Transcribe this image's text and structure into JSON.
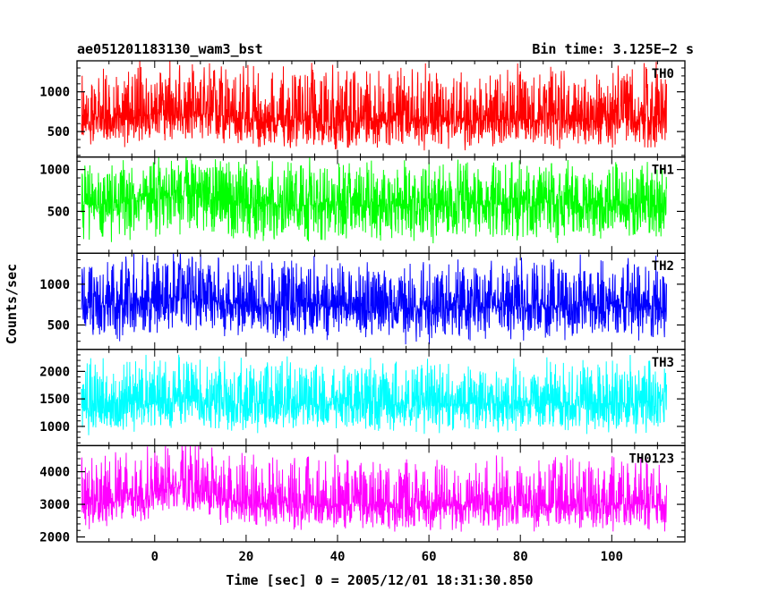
{
  "chart_data": {
    "type": "line",
    "title_left": "ae051201183130_wam3_bst",
    "title_right": "Bin time: 3.125E−2 s",
    "xlabel": "Time [sec] 0 = 2005/12/01 18:31:30.850",
    "ylabel": "Counts/sec",
    "xlim": [
      -17,
      116
    ],
    "xticks": [
      0,
      20,
      40,
      60,
      80,
      100
    ],
    "x_data_range": [
      -16,
      112
    ],
    "bin_time_s": 0.03125,
    "panels": [
      {
        "name": "TH0",
        "color": "#ff0000",
        "ylim": [
          180,
          1390
        ],
        "yticks": [
          500,
          1000
        ],
        "mean": 650,
        "noise_low": 330,
        "noise_high": 1260,
        "envelope": [
          [
            -16,
            650
          ],
          [
            -5,
            680
          ],
          [
            0,
            720
          ],
          [
            5,
            760
          ],
          [
            10,
            730
          ],
          [
            20,
            660
          ],
          [
            40,
            640
          ],
          [
            60,
            640
          ],
          [
            80,
            650
          ],
          [
            100,
            650
          ],
          [
            112,
            650
          ]
        ]
      },
      {
        "name": "TH1",
        "color": "#00ff00",
        "ylim": [
          0,
          1150
        ],
        "yticks": [
          500,
          1000
        ],
        "mean": 580,
        "noise_low": 180,
        "noise_high": 1050,
        "envelope": [
          [
            -16,
            580
          ],
          [
            -5,
            600
          ],
          [
            0,
            640
          ],
          [
            5,
            700
          ],
          [
            10,
            660
          ],
          [
            20,
            590
          ],
          [
            40,
            570
          ],
          [
            60,
            570
          ],
          [
            80,
            580
          ],
          [
            100,
            580
          ],
          [
            112,
            580
          ]
        ]
      },
      {
        "name": "TH2",
        "color": "#0000ff",
        "ylim": [
          200,
          1380
        ],
        "yticks": [
          500,
          1000
        ],
        "mean": 730,
        "noise_low": 360,
        "noise_high": 1250,
        "envelope": [
          [
            -16,
            730
          ],
          [
            -5,
            760
          ],
          [
            0,
            800
          ],
          [
            5,
            840
          ],
          [
            10,
            810
          ],
          [
            20,
            740
          ],
          [
            40,
            720
          ],
          [
            60,
            720
          ],
          [
            80,
            730
          ],
          [
            100,
            730
          ],
          [
            112,
            730
          ]
        ]
      },
      {
        "name": "TH3",
        "color": "#00ffff",
        "ylim": [
          650,
          2400
        ],
        "yticks": [
          1000,
          1500,
          2000
        ],
        "mean": 1420,
        "noise_low": 950,
        "noise_high": 2150,
        "envelope": [
          [
            -16,
            1420
          ],
          [
            -5,
            1440
          ],
          [
            0,
            1460
          ],
          [
            5,
            1480
          ],
          [
            10,
            1450
          ],
          [
            20,
            1420
          ],
          [
            40,
            1410
          ],
          [
            60,
            1410
          ],
          [
            80,
            1420
          ],
          [
            100,
            1420
          ],
          [
            112,
            1420
          ]
        ]
      },
      {
        "name": "TH0123",
        "color": "#ff00ff",
        "ylim": [
          1850,
          4800
        ],
        "yticks": [
          2000,
          3000,
          4000
        ],
        "mean": 3000,
        "noise_low": 2300,
        "noise_high": 4300,
        "envelope": [
          [
            -16,
            3000
          ],
          [
            -5,
            3150
          ],
          [
            0,
            3400
          ],
          [
            5,
            3550
          ],
          [
            10,
            3350
          ],
          [
            20,
            3050
          ],
          [
            40,
            2950
          ],
          [
            60,
            2950
          ],
          [
            80,
            3000
          ],
          [
            100,
            3000
          ],
          [
            112,
            3000
          ]
        ]
      }
    ]
  }
}
